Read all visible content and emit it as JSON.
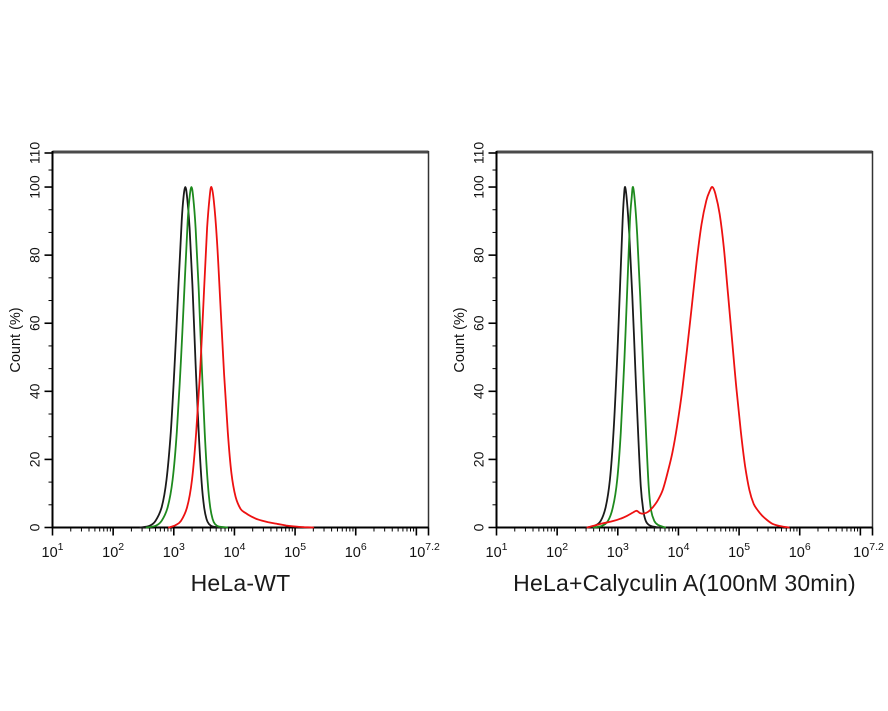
{
  "figure": {
    "background": "#ffffff",
    "axis_color": "#000000",
    "frame_top_color": "#4a4a4a",
    "frame_right_color": "#333333"
  },
  "chart_data": [
    {
      "type": "line",
      "title": "HeLa-WT",
      "xlabel": "",
      "ylabel": "Count  (%)",
      "x_scale": "log10",
      "xlim": [
        1,
        7.2
      ],
      "ylim": [
        0,
        110
      ],
      "grid": false,
      "legend": null,
      "x_labeled_decades": [
        1,
        2,
        3,
        4,
        5,
        6
      ],
      "x_end_label_exponent": "7.2",
      "x_tick_base": "10",
      "y_ticks": [
        0,
        20,
        40,
        60,
        80,
        100,
        110
      ],
      "series": [
        {
          "name": "black",
          "color": "#1a1a1a",
          "points": [
            [
              2.45,
              0
            ],
            [
              2.6,
              0.5
            ],
            [
              2.7,
              2
            ],
            [
              2.8,
              6
            ],
            [
              2.88,
              14
            ],
            [
              2.95,
              28
            ],
            [
              3.02,
              50
            ],
            [
              3.08,
              72
            ],
            [
              3.13,
              90
            ],
            [
              3.16,
              97
            ],
            [
              3.19,
              100
            ],
            [
              3.22,
              97
            ],
            [
              3.26,
              88
            ],
            [
              3.31,
              70
            ],
            [
              3.36,
              48
            ],
            [
              3.41,
              28
            ],
            [
              3.46,
              13
            ],
            [
              3.5,
              6
            ],
            [
              3.54,
              2.5
            ],
            [
              3.58,
              1
            ],
            [
              3.64,
              0.3
            ],
            [
              3.78,
              0
            ]
          ]
        },
        {
          "name": "green",
          "color": "#1e8a1e",
          "points": [
            [
              2.55,
              0
            ],
            [
              2.7,
              0.5
            ],
            [
              2.8,
              2
            ],
            [
              2.9,
              6
            ],
            [
              2.98,
              14
            ],
            [
              3.05,
              28
            ],
            [
              3.12,
              50
            ],
            [
              3.18,
              72
            ],
            [
              3.23,
              90
            ],
            [
              3.26,
              97
            ],
            [
              3.29,
              100
            ],
            [
              3.32,
              97
            ],
            [
              3.36,
              88
            ],
            [
              3.41,
              70
            ],
            [
              3.46,
              48
            ],
            [
              3.51,
              28
            ],
            [
              3.56,
              13
            ],
            [
              3.6,
              6
            ],
            [
              3.64,
              2.5
            ],
            [
              3.68,
              1
            ],
            [
              3.74,
              0.3
            ],
            [
              3.88,
              0
            ]
          ]
        },
        {
          "name": "red",
          "color": "#ed1111",
          "points": [
            [
              2.92,
              0
            ],
            [
              3.03,
              0.7
            ],
            [
              3.12,
              2
            ],
            [
              3.22,
              6
            ],
            [
              3.3,
              14
            ],
            [
              3.37,
              28
            ],
            [
              3.44,
              48
            ],
            [
              3.5,
              70
            ],
            [
              3.55,
              88
            ],
            [
              3.59,
              97
            ],
            [
              3.62,
              100
            ],
            [
              3.66,
              96
            ],
            [
              3.71,
              85
            ],
            [
              3.77,
              65
            ],
            [
              3.83,
              45
            ],
            [
              3.89,
              28
            ],
            [
              3.95,
              16
            ],
            [
              4.02,
              9
            ],
            [
              4.1,
              5.5
            ],
            [
              4.18,
              4.3
            ],
            [
              4.28,
              3.2
            ],
            [
              4.4,
              2.3
            ],
            [
              4.55,
              1.6
            ],
            [
              4.7,
              1.1
            ],
            [
              4.85,
              0.6
            ],
            [
              5.0,
              0.3
            ],
            [
              5.15,
              0.1
            ],
            [
              5.3,
              0
            ]
          ]
        }
      ]
    },
    {
      "type": "line",
      "title": "HeLa+Calyculin A(100nM 30min)",
      "xlabel": "",
      "ylabel": "Count  (%)",
      "x_scale": "log10",
      "xlim": [
        1,
        7.2
      ],
      "ylim": [
        0,
        110
      ],
      "grid": false,
      "legend": null,
      "x_labeled_decades": [
        1,
        2,
        3,
        4,
        5,
        6
      ],
      "x_end_label_exponent": "7.2",
      "x_tick_base": "10",
      "y_ticks": [
        0,
        20,
        40,
        60,
        80,
        100,
        110
      ],
      "series": [
        {
          "name": "black",
          "color": "#1a1a1a",
          "points": [
            [
              2.48,
              0
            ],
            [
              2.62,
              0.5
            ],
            [
              2.72,
              2
            ],
            [
              2.8,
              6
            ],
            [
              2.87,
              14
            ],
            [
              2.93,
              28
            ],
            [
              2.99,
              50
            ],
            [
              3.04,
              72
            ],
            [
              3.08,
              90
            ],
            [
              3.1,
              97
            ],
            [
              3.12,
              100
            ],
            [
              3.15,
              96
            ],
            [
              3.19,
              86
            ],
            [
              3.24,
              68
            ],
            [
              3.29,
              46
            ],
            [
              3.34,
              26
            ],
            [
              3.38,
              12
            ],
            [
              3.42,
              5
            ],
            [
              3.46,
              2
            ],
            [
              3.51,
              0.8
            ],
            [
              3.6,
              0.2
            ],
            [
              3.7,
              0
            ]
          ]
        },
        {
          "name": "green",
          "color": "#1e8a1e",
          "points": [
            [
              2.6,
              0
            ],
            [
              2.74,
              0.5
            ],
            [
              2.84,
              2
            ],
            [
              2.92,
              6
            ],
            [
              2.99,
              14
            ],
            [
              3.05,
              28
            ],
            [
              3.11,
              50
            ],
            [
              3.16,
              72
            ],
            [
              3.2,
              90
            ],
            [
              3.23,
              97
            ],
            [
              3.25,
              100
            ],
            [
              3.28,
              96
            ],
            [
              3.32,
              86
            ],
            [
              3.37,
              68
            ],
            [
              3.42,
              46
            ],
            [
              3.47,
              26
            ],
            [
              3.51,
              12
            ],
            [
              3.55,
              5
            ],
            [
              3.6,
              2
            ],
            [
              3.66,
              0.8
            ],
            [
              3.78,
              0
            ]
          ]
        },
        {
          "name": "red",
          "color": "#ed1111",
          "points": [
            [
              2.5,
              0
            ],
            [
              2.62,
              0.6
            ],
            [
              2.75,
              1.2
            ],
            [
              2.9,
              1.8
            ],
            [
              3.05,
              2.6
            ],
            [
              3.15,
              3.4
            ],
            [
              3.25,
              4.4
            ],
            [
              3.31,
              4.9
            ],
            [
              3.37,
              4.2
            ],
            [
              3.43,
              4.1
            ],
            [
              3.5,
              4.6
            ],
            [
              3.58,
              6
            ],
            [
              3.66,
              8
            ],
            [
              3.74,
              11
            ],
            [
              3.82,
              16
            ],
            [
              3.9,
              22
            ],
            [
              3.98,
              30
            ],
            [
              4.06,
              40
            ],
            [
              4.14,
              52
            ],
            [
              4.22,
              65
            ],
            [
              4.3,
              78
            ],
            [
              4.38,
              89
            ],
            [
              4.46,
              96
            ],
            [
              4.52,
              99
            ],
            [
              4.56,
              100
            ],
            [
              4.61,
              98
            ],
            [
              4.68,
              92
            ],
            [
              4.75,
              82
            ],
            [
              4.82,
              68
            ],
            [
              4.89,
              54
            ],
            [
              4.96,
              40
            ],
            [
              5.03,
              28
            ],
            [
              5.1,
              18
            ],
            [
              5.17,
              11
            ],
            [
              5.24,
              7
            ],
            [
              5.31,
              5
            ],
            [
              5.38,
              3.5
            ],
            [
              5.46,
              2.2
            ],
            [
              5.56,
              1
            ],
            [
              5.68,
              0.4
            ],
            [
              5.82,
              0
            ]
          ]
        }
      ]
    }
  ]
}
